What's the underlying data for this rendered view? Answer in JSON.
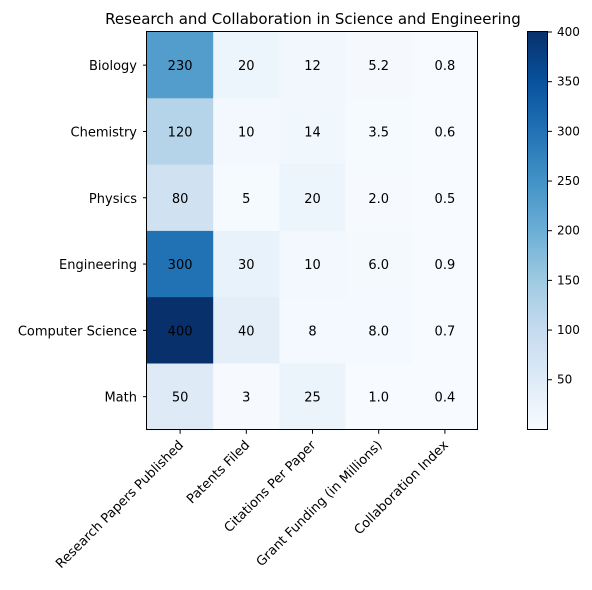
{
  "chart_data": {
    "type": "heatmap",
    "title": "Research and Collaboration in Science and Engineering",
    "rows": [
      "Biology",
      "Chemistry",
      "Physics",
      "Engineering",
      "Computer Science",
      "Math"
    ],
    "columns": [
      "Research Papers Published",
      "Patents Filed",
      "Citations Per Paper",
      "Grant Funding (in Millions)",
      "Collaboration Index"
    ],
    "values": [
      [
        230,
        20,
        12,
        5.2,
        0.8
      ],
      [
        120,
        10,
        14,
        3.5,
        0.6
      ],
      [
        80,
        5,
        20,
        2.0,
        0.5
      ],
      [
        300,
        30,
        10,
        6.0,
        0.9
      ],
      [
        400,
        40,
        8,
        8.0,
        0.7
      ],
      [
        50,
        3,
        25,
        1.0,
        0.4
      ]
    ],
    "cell_labels": [
      [
        "230",
        "20",
        "12",
        "5.2",
        "0.8"
      ],
      [
        "120",
        "10",
        "14",
        "3.5",
        "0.6"
      ],
      [
        "80",
        "5",
        "20",
        "2.0",
        "0.5"
      ],
      [
        "300",
        "30",
        "10",
        "6.0",
        "0.9"
      ],
      [
        "400",
        "40",
        "8",
        "8.0",
        "0.7"
      ],
      [
        "50",
        "3",
        "25",
        "1.0",
        "0.4"
      ]
    ],
    "colormap": "Blues",
    "color_range": [
      0.4,
      400
    ],
    "colorbar_ticks": [
      50,
      100,
      150,
      200,
      250,
      300,
      350,
      400
    ],
    "colorbar_position": "right"
  }
}
